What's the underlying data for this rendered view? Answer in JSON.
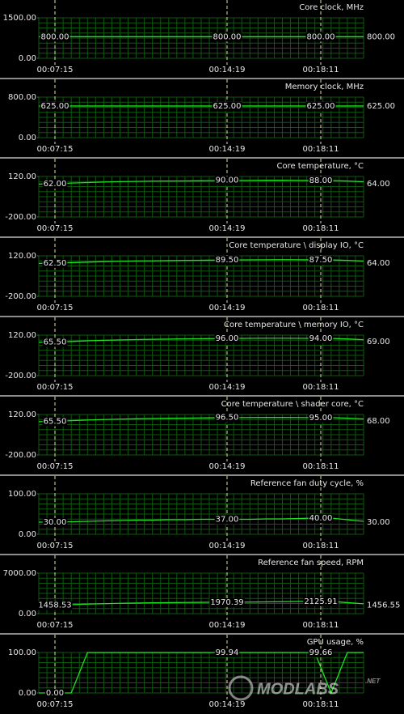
{
  "chart_data": [
    {
      "type": "line",
      "title": "Core clock, MHz",
      "ylim": [
        0,
        1500
      ],
      "yticks": [
        {
          "value": 0,
          "label": "0.00"
        },
        {
          "value": 1500,
          "label": "1500.00"
        }
      ],
      "color": "#22e022",
      "values": [
        800,
        800,
        800,
        800,
        800,
        800,
        800,
        800,
        800,
        800,
        800,
        800,
        800,
        800,
        800,
        800,
        800,
        800,
        800,
        800,
        800
      ],
      "markers": [
        {
          "time": "00:07:15",
          "value": 800,
          "label": "800.00"
        },
        {
          "time": "00:14:19",
          "value": 800,
          "label": "800.00"
        },
        {
          "time": "00:18:11",
          "value": 800,
          "label": "800.00"
        }
      ],
      "current": {
        "value": 800,
        "label": "800.00"
      }
    },
    {
      "type": "line",
      "title": "Memory clock, MHz",
      "ylim": [
        0,
        800
      ],
      "yticks": [
        {
          "value": 0,
          "label": "0.00"
        },
        {
          "value": 800,
          "label": "800.00"
        }
      ],
      "color": "#22e022",
      "values": [
        625,
        625,
        625,
        625,
        625,
        625,
        625,
        625,
        625,
        625,
        625,
        625,
        625,
        625,
        625,
        625,
        625,
        625,
        625,
        625,
        625
      ],
      "markers": [
        {
          "time": "00:07:15",
          "value": 625,
          "label": "625.00"
        },
        {
          "time": "00:14:19",
          "value": 625,
          "label": "625.00"
        },
        {
          "time": "00:18:11",
          "value": 625,
          "label": "625.00"
        }
      ],
      "current": {
        "value": 625,
        "label": "625.00"
      }
    },
    {
      "type": "line",
      "title": "Core temperature, °C",
      "ylim": [
        -200,
        120
      ],
      "yticks": [
        {
          "value": -200,
          "label": "-200.00"
        },
        {
          "value": 120,
          "label": "120.00"
        }
      ],
      "color": "#22e022",
      "values": [
        60,
        62,
        68,
        72,
        76,
        79,
        81,
        83,
        84,
        85,
        86,
        87,
        88,
        89,
        90,
        90,
        89,
        88,
        88,
        84,
        78
      ],
      "markers": [
        {
          "time": "00:07:15",
          "value": 62,
          "label": "62.00"
        },
        {
          "time": "00:14:19",
          "value": 90,
          "label": "90.00"
        },
        {
          "time": "00:18:11",
          "value": 88,
          "label": "88.00"
        }
      ],
      "current": {
        "value": 64,
        "label": "64.00"
      }
    },
    {
      "type": "line",
      "title": "Core temperature \\ display IO, °C",
      "ylim": [
        -200,
        120
      ],
      "yticks": [
        {
          "value": -200,
          "label": "-200.00"
        },
        {
          "value": 120,
          "label": "120.00"
        }
      ],
      "color": "#22e022",
      "values": [
        60,
        62.5,
        66,
        70,
        74,
        77,
        79,
        80,
        82,
        84,
        85,
        86,
        87,
        88,
        89,
        89.5,
        89,
        88,
        87.5,
        84,
        78
      ],
      "markers": [
        {
          "time": "00:07:15",
          "value": 62.5,
          "label": "62.50"
        },
        {
          "time": "00:14:19",
          "value": 89.5,
          "label": "89.50"
        },
        {
          "time": "00:18:11",
          "value": 87.5,
          "label": "87.50"
        }
      ],
      "current": {
        "value": 64,
        "label": "64.00"
      }
    },
    {
      "type": "line",
      "title": "Core temperature \\ memory IO, °C",
      "ylim": [
        -200,
        120
      ],
      "yticks": [
        {
          "value": -200,
          "label": "-200.00"
        },
        {
          "value": 120,
          "label": "120.00"
        }
      ],
      "color": "#22e022",
      "values": [
        63,
        65.5,
        70,
        75,
        79,
        82,
        85,
        87,
        89,
        91,
        92,
        93,
        94,
        95,
        96,
        96,
        95,
        94,
        94,
        90,
        84
      ],
      "markers": [
        {
          "time": "00:07:15",
          "value": 65.5,
          "label": "65.50"
        },
        {
          "time": "00:14:19",
          "value": 96,
          "label": "96.00"
        },
        {
          "time": "00:18:11",
          "value": 94,
          "label": "94.00"
        }
      ],
      "current": {
        "value": 69,
        "label": "69.00"
      }
    },
    {
      "type": "line",
      "title": "Core temperature \\ shader core, °C",
      "ylim": [
        -200,
        120
      ],
      "yticks": [
        {
          "value": -200,
          "label": "-200.00"
        },
        {
          "value": 120,
          "label": "120.00"
        }
      ],
      "color": "#22e022",
      "values": [
        63,
        65.5,
        71,
        76,
        80,
        83,
        86,
        88,
        90,
        91,
        93,
        94,
        95,
        96,
        96.5,
        96.5,
        96,
        95,
        95,
        91,
        85
      ],
      "markers": [
        {
          "time": "00:07:15",
          "value": 65.5,
          "label": "65.50"
        },
        {
          "time": "00:14:19",
          "value": 96.5,
          "label": "96.50"
        },
        {
          "time": "00:18:11",
          "value": 95,
          "label": "95.00"
        }
      ],
      "current": {
        "value": 68,
        "label": "68.00"
      }
    },
    {
      "type": "line",
      "title": "Reference fan duty cycle, %",
      "ylim": [
        0,
        100
      ],
      "yticks": [
        {
          "value": 0,
          "label": "0.00"
        },
        {
          "value": 100,
          "label": "100.00"
        }
      ],
      "color": "#22e022",
      "values": [
        30,
        30,
        31,
        32,
        33,
        34,
        35,
        35,
        36,
        36,
        37,
        37,
        37,
        37,
        38,
        38,
        39,
        40,
        40,
        36,
        32
      ],
      "markers": [
        {
          "time": "00:07:15",
          "value": 30,
          "label": "30.00"
        },
        {
          "time": "00:14:19",
          "value": 37,
          "label": "37.00"
        },
        {
          "time": "00:18:11",
          "value": 40,
          "label": "40.00"
        }
      ],
      "current": {
        "value": 30,
        "label": "30.00"
      }
    },
    {
      "type": "line",
      "title": "Reference fan speed, RPM",
      "ylim": [
        0,
        7000
      ],
      "yticks": [
        {
          "value": 0,
          "label": "0.00"
        },
        {
          "value": 7000,
          "label": "7000.00"
        }
      ],
      "color": "#22e022",
      "values": [
        1458.53,
        1460,
        1550,
        1650,
        1720,
        1780,
        1830,
        1870,
        1900,
        1930,
        1950,
        1970.39,
        1980,
        2000,
        2030,
        2060,
        2100,
        2125.91,
        2125,
        1900,
        1700
      ],
      "markers": [
        {
          "time": "00:07:15",
          "value": 1458.53,
          "label": "1458.53"
        },
        {
          "time": "00:14:19",
          "value": 1970.39,
          "label": "1970.39"
        },
        {
          "time": "00:18:11",
          "value": 2125.91,
          "label": "2125.91"
        }
      ],
      "current": {
        "value": 1456.55,
        "label": "1456.55"
      }
    },
    {
      "type": "line",
      "title": "GPU usage, %",
      "ylim": [
        0,
        100
      ],
      "yticks": [
        {
          "value": 0,
          "label": "0.00"
        },
        {
          "value": 100,
          "label": "100.00"
        }
      ],
      "color": "#22e022",
      "values": [
        0,
        0,
        0,
        99.9,
        99.9,
        99.9,
        99.9,
        99.9,
        99.9,
        99.9,
        99.9,
        99.94,
        99.9,
        99.9,
        99.9,
        99.9,
        99.9,
        99.66,
        0,
        99.9,
        99.9
      ],
      "markers": [
        {
          "time": "00:07:15",
          "value": 0,
          "label": "0.00"
        },
        {
          "time": "00:14:19",
          "value": 99.94,
          "label": "99.94"
        },
        {
          "time": "00:18:11",
          "value": 99.66,
          "label": "99.66"
        }
      ]
    }
  ],
  "watermark": {
    "text": "MODLABS",
    "suffix": ".NET"
  }
}
